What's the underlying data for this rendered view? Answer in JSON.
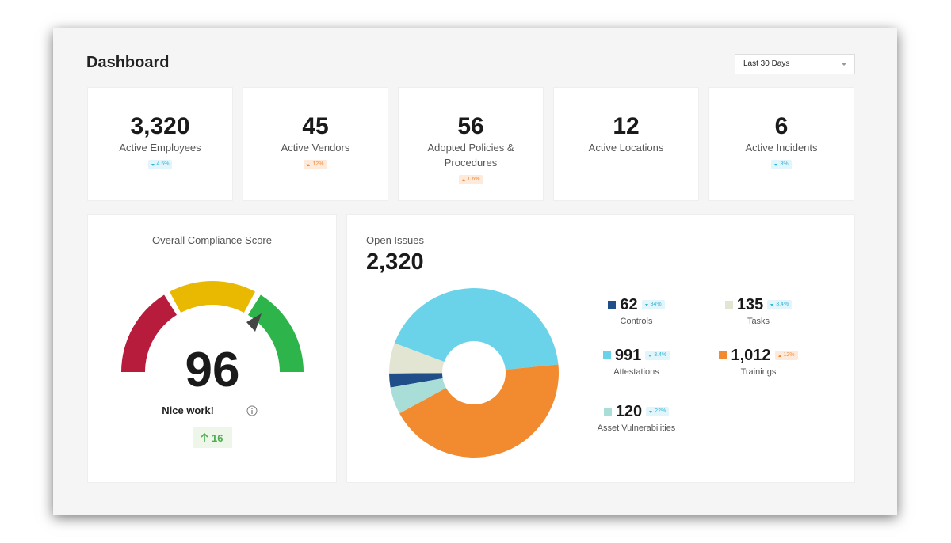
{
  "header": {
    "title": "Dashboard",
    "period": "Last 30 Days"
  },
  "kpis": [
    {
      "value": "3,320",
      "label": "Active Employees",
      "change": "4.5%",
      "trend": "down"
    },
    {
      "value": "45",
      "label": "Active Vendors",
      "change": "12%",
      "trend": "up"
    },
    {
      "value": "56",
      "label": "Adopted Policies & Procedures",
      "change": "1.6%",
      "trend": "up"
    },
    {
      "value": "12",
      "label": "Active Locations"
    },
    {
      "value": "6",
      "label": "Active Incidents",
      "change": "3%",
      "trend": "down"
    }
  ],
  "compliance": {
    "title": "Overall Compliance Score",
    "score": "96",
    "message": "Nice work!",
    "change": "16"
  },
  "open_issues": {
    "title": "Open Issues",
    "total": "2,320",
    "chart_type": "donut",
    "items": [
      {
        "name": "Controls",
        "value": 62,
        "color": "#1f4e89",
        "change": "34%",
        "trend": "down"
      },
      {
        "name": "Tasks",
        "value": 135,
        "color": "#e2e5d2",
        "change": "3.4%",
        "trend": "down"
      },
      {
        "name": "Attestations",
        "value": 991,
        "color": "#6ad3e9",
        "change": "3.4%",
        "trend": "down"
      },
      {
        "name": "Trainings",
        "value": 1012,
        "value_label": "1,012",
        "color": "#f28a30",
        "change": "12%",
        "trend": "up"
      },
      {
        "name": "Asset Vulnerabilities",
        "value": 120,
        "color": "#a8ddd8",
        "change": "22%",
        "trend": "down"
      }
    ]
  }
}
